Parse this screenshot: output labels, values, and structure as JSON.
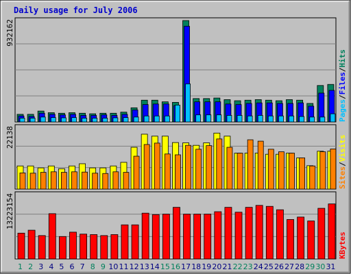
{
  "title": "Daily usage for July 2006",
  "colors": {
    "background": "#c0c0c0",
    "hits": "#00805c",
    "files": "#0000ff",
    "pages": "#00c0ff",
    "visits": "#ffff00",
    "sites": "#ff8000",
    "kbytes": "#ff0000",
    "weekend_label": "#00805c",
    "weekday_label": "#000080"
  },
  "chart_data": [
    {
      "type": "bar",
      "name": "hits-files-pages",
      "categories": [
        "1",
        "2",
        "3",
        "4",
        "5",
        "6",
        "7",
        "8",
        "9",
        "10",
        "11",
        "12",
        "13",
        "14",
        "15",
        "16",
        "17",
        "18",
        "19",
        "20",
        "21",
        "22",
        "23",
        "24",
        "25",
        "26",
        "27",
        "28",
        "29",
        "30",
        "31"
      ],
      "max_label": "932162",
      "ylim": [
        0,
        932162
      ],
      "legend": [
        "Pages",
        "/",
        "Files",
        "/",
        "Hits"
      ],
      "series": [
        {
          "name": "Hits",
          "color_key": "hits",
          "values": [
            70000,
            70000,
            100000,
            85000,
            80000,
            85000,
            80000,
            75000,
            80000,
            80000,
            90000,
            130000,
            200000,
            200000,
            185000,
            180000,
            932162,
            215000,
            215000,
            220000,
            205000,
            195000,
            200000,
            205000,
            200000,
            195000,
            205000,
            200000,
            170000,
            335000,
            345000
          ]
        },
        {
          "name": "Files",
          "color_key": "files",
          "values": [
            55000,
            50000,
            80000,
            70000,
            65000,
            70000,
            60000,
            60000,
            65000,
            60000,
            70000,
            110000,
            160000,
            165000,
            165000,
            150000,
            880000,
            185000,
            185000,
            185000,
            165000,
            160000,
            170000,
            175000,
            175000,
            170000,
            170000,
            175000,
            145000,
            265000,
            290000
          ]
        },
        {
          "name": "Pages",
          "color_key": "pages",
          "values": [
            35000,
            35000,
            45000,
            40000,
            38000,
            40000,
            35000,
            35000,
            35000,
            38000,
            40000,
            45000,
            55000,
            55000,
            55000,
            155000,
            350000,
            65000,
            65000,
            65000,
            60000,
            60000,
            55000,
            60000,
            55000,
            55000,
            55000,
            50000,
            45000,
            45000,
            75000
          ]
        }
      ]
    },
    {
      "type": "bar",
      "name": "visits-sites",
      "categories": [
        "1",
        "2",
        "3",
        "4",
        "5",
        "6",
        "7",
        "8",
        "9",
        "10",
        "11",
        "12",
        "13",
        "14",
        "15",
        "16",
        "17",
        "18",
        "19",
        "20",
        "21",
        "22",
        "23",
        "24",
        "25",
        "26",
        "27",
        "28",
        "29",
        "30",
        "31"
      ],
      "max_label": "22138",
      "ylim": [
        0,
        22138
      ],
      "legend": [
        "Sites",
        "/",
        "Visits"
      ],
      "series": [
        {
          "name": "Visits",
          "color_key": "visits",
          "values": [
            8300,
            8300,
            7600,
            8300,
            7300,
            8300,
            9100,
            7600,
            7600,
            8300,
            9600,
            15000,
            19700,
            19000,
            19000,
            16700,
            16600,
            15700,
            16600,
            20100,
            19000,
            12900,
            12900,
            12900,
            12500,
            12500,
            12900,
            11200,
            8400,
            13600,
            13600
          ]
        },
        {
          "name": "Sites",
          "color_key": "sites",
          "values": [
            5800,
            5700,
            6000,
            6200,
            6000,
            6200,
            6100,
            5700,
            5600,
            6200,
            6000,
            11800,
            16000,
            16500,
            12600,
            12300,
            15700,
            14300,
            15600,
            18000,
            15000,
            12900,
            17700,
            17200,
            14300,
            13400,
            12900,
            11200,
            8300,
            13400,
            14400
          ]
        }
      ]
    },
    {
      "type": "bar",
      "name": "kbytes",
      "categories": [
        "1",
        "2",
        "3",
        "4",
        "5",
        "6",
        "7",
        "8",
        "9",
        "10",
        "11",
        "12",
        "13",
        "14",
        "15",
        "16",
        "17",
        "18",
        "19",
        "20",
        "21",
        "22",
        "23",
        "24",
        "25",
        "26",
        "27",
        "28",
        "29",
        "30",
        "31"
      ],
      "max_label": "13223154",
      "ylim": [
        0,
        13223154
      ],
      "legend": [
        "KBytes"
      ],
      "series": [
        {
          "name": "KBytes",
          "color_key": "kbytes",
          "values": [
            5300000,
            5900000,
            4800000,
            9300000,
            4600000,
            5500000,
            5100000,
            5000000,
            4800000,
            5000000,
            7000000,
            7000000,
            9400000,
            9100000,
            9200000,
            10600000,
            9200000,
            9200000,
            9200000,
            9700000,
            10600000,
            9600000,
            10600000,
            11000000,
            10800000,
            10100000,
            8100000,
            8600000,
            7800000,
            10400000,
            11300000
          ]
        }
      ]
    }
  ],
  "day_labels": [
    "1",
    "2",
    "3",
    "4",
    "5",
    "6",
    "7",
    "8",
    "9",
    "10",
    "11",
    "12",
    "13",
    "14",
    "15",
    "16",
    "17",
    "18",
    "19",
    "20",
    "21",
    "22",
    "23",
    "24",
    "25",
    "26",
    "27",
    "28",
    "29",
    "30",
    "31"
  ],
  "weekend_days": [
    1,
    2,
    8,
    9,
    15,
    16,
    22,
    23,
    29,
    30
  ]
}
